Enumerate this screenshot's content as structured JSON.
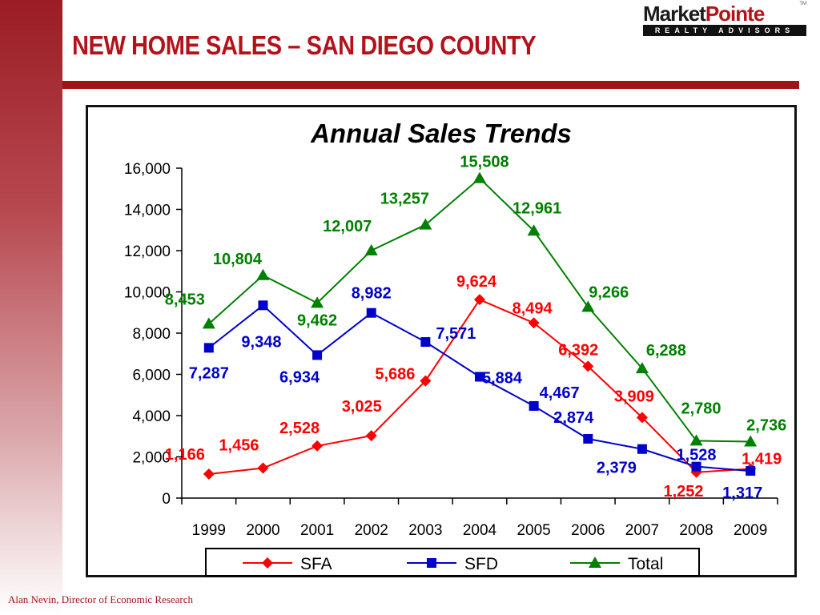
{
  "slide": {
    "title": "NEW HOME SALES – SAN DIEGO COUNTY",
    "footer": "Alan Nevin, Director of Economic Research"
  },
  "logo": {
    "name_part1": "Market",
    "name_part2": "Pointe",
    "tagline": "REALTY ADVISORS",
    "tm": "TM"
  },
  "colors": {
    "brand_red": "#b3121b",
    "sfa": "#ff0000",
    "sfd": "#0000cc",
    "total": "#008000"
  },
  "chart_data": {
    "type": "line",
    "title": "Annual Sales Trends",
    "categories": [
      "1999",
      "2000",
      "2001",
      "2002",
      "2003",
      "2004",
      "2005",
      "2006",
      "2007",
      "2008",
      "2009"
    ],
    "ylim": [
      0,
      16000
    ],
    "yticks": [
      "0",
      "2,000",
      "4,000",
      "6,000",
      "8,000",
      "10,000",
      "12,000",
      "14,000",
      "16,000"
    ],
    "grid": false,
    "legend_position": "bottom",
    "series": [
      {
        "name": "SFA",
        "color": "#ff0000",
        "marker": "diamond",
        "values": [
          1166,
          1456,
          2528,
          3025,
          5686,
          9624,
          8494,
          6392,
          3909,
          1252,
          1419
        ],
        "labels": [
          "1,166",
          "1,456",
          "2,528",
          "3,025",
          "5,686",
          "9,624",
          "8,494",
          "6,392",
          "3,909",
          "1,252",
          "1,419"
        ]
      },
      {
        "name": "SFD",
        "color": "#0000cc",
        "marker": "square",
        "values": [
          7287,
          9348,
          6934,
          8982,
          7571,
          5884,
          4467,
          2874,
          2379,
          1528,
          1317
        ],
        "labels": [
          "7,287",
          "9,348",
          "6,934",
          "8,982",
          "7,571",
          "5,884",
          "4,467",
          "2,874",
          "2,379",
          "1,528",
          "1,317"
        ]
      },
      {
        "name": "Total",
        "color": "#008000",
        "marker": "triangle",
        "values": [
          8453,
          10804,
          9462,
          12007,
          13257,
          15508,
          12961,
          9266,
          6288,
          2780,
          2736
        ],
        "labels": [
          "8,453",
          "10,804",
          "9,462",
          "12,007",
          "13,257",
          "15,508",
          "12,961",
          "9,266",
          "6,288",
          "2,780",
          "2,736"
        ]
      }
    ]
  }
}
